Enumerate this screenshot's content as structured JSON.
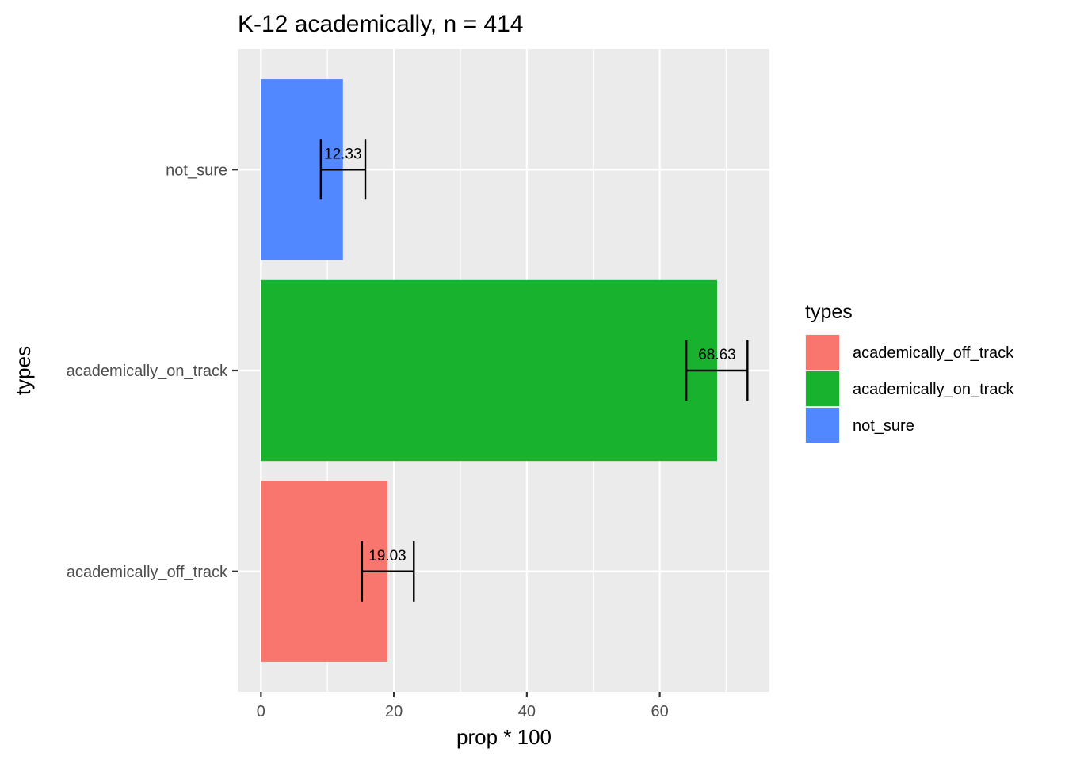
{
  "chart_data": {
    "type": "bar",
    "orientation": "horizontal",
    "title": "K-12 academically, n = 414",
    "xlabel": "prop * 100",
    "ylabel": "types",
    "categories": [
      "academically_off_track",
      "academically_on_track",
      "not_sure"
    ],
    "values": [
      19.03,
      68.63,
      12.33
    ],
    "data_labels": [
      "19.03",
      "68.63",
      "12.33"
    ],
    "error_bars": [
      {
        "low": 15.2,
        "high": 23.0
      },
      {
        "low": 64.0,
        "high": 73.2
      },
      {
        "low": 9.0,
        "high": 15.7
      }
    ],
    "colors": [
      "#F8766D",
      "#19B22F",
      "#5288FF"
    ],
    "xlim": [
      -3.5,
      76.5
    ],
    "xticks": [
      0,
      20,
      40,
      60
    ],
    "grid": true,
    "legend": {
      "title": "types",
      "placement": "right",
      "items": [
        "academically_off_track",
        "academically_on_track",
        "not_sure"
      ]
    }
  }
}
